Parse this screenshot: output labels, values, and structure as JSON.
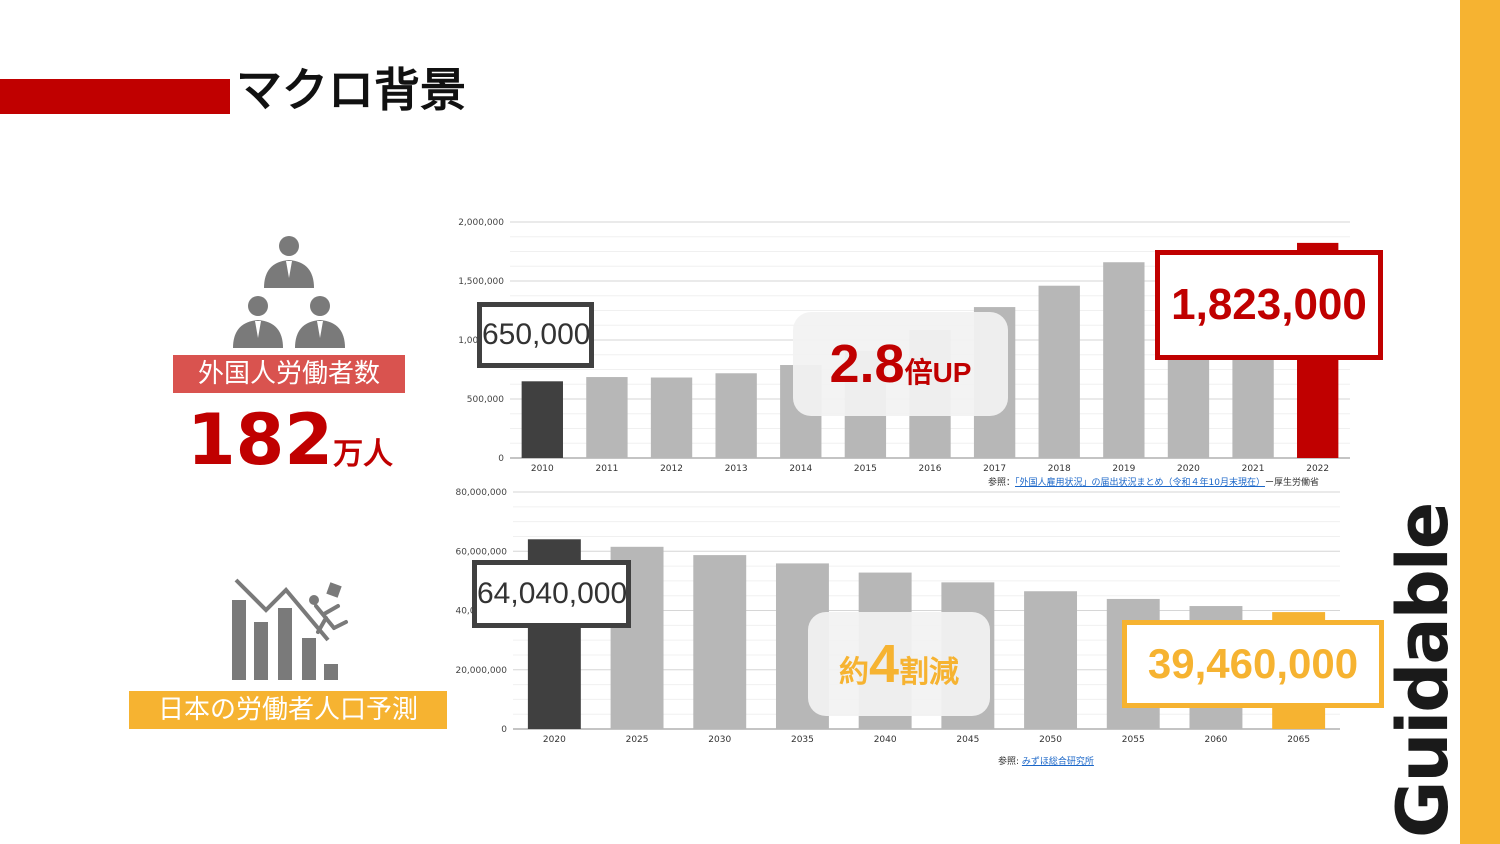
{
  "header": {
    "title": "マクロ背景"
  },
  "brand": {
    "logo_text": "Guidable",
    "accent_red": "#c00000",
    "accent_yellow": "#f6b331"
  },
  "left_panel": {
    "workers_icon": "business-people-icon",
    "workers_label": "外国人労働者数",
    "workers_value": "182",
    "workers_unit": "万人",
    "decline_icon": "declining-chart-falling-person-icon",
    "forecast_label": "日本の労働者人口予測"
  },
  "chart_data": [
    {
      "type": "bar",
      "categories": [
        "2010",
        "2011",
        "2012",
        "2013",
        "2014",
        "2015",
        "2016",
        "2017",
        "2018",
        "2019",
        "2020",
        "2021",
        "2022"
      ],
      "values": [
        650000,
        686000,
        682000,
        718000,
        788000,
        908000,
        1084000,
        1279000,
        1460000,
        1659000,
        1724000,
        1727000,
        1823000
      ],
      "ylim": [
        0,
        2000000
      ],
      "yticks": [
        "0",
        "500,000",
        "1,000,000",
        "1,500,000",
        "2,000,000"
      ],
      "grid": true,
      "highlight_colors": {
        "first": "#404040",
        "last": "#c00000",
        "default": "#b7b7b7"
      },
      "callouts": {
        "first_value": "650,000",
        "last_value": "1,823,000",
        "growth_number": "2.8",
        "growth_suffix": "倍UP"
      },
      "source": {
        "prefix": "参照：",
        "link": "「外国人雇用状況」の届出状況まとめ（令和４年10月末現在）",
        "suffix": "ー厚生労働省"
      }
    },
    {
      "type": "bar",
      "categories": [
        "2020",
        "2025",
        "2030",
        "2035",
        "2040",
        "2045",
        "2050",
        "2055",
        "2060",
        "2065"
      ],
      "values": [
        64040000,
        61500000,
        58700000,
        55900000,
        52800000,
        49500000,
        46500000,
        43900000,
        41500000,
        39460000
      ],
      "ylim": [
        0,
        80000000
      ],
      "yticks": [
        "0",
        "20,000,000",
        "40,000,000",
        "60,000,000",
        "80,000,000"
      ],
      "grid": true,
      "highlight_colors": {
        "first": "#404040",
        "last": "#f6b331",
        "default": "#b7b7b7"
      },
      "callouts": {
        "first_value": "64,040,000",
        "last_value": "39,460,000",
        "change_prefix": "約",
        "change_number": "4",
        "change_suffix": "割減"
      },
      "source": {
        "prefix": "参照: ",
        "link": "みずほ総合研究所",
        "suffix": ""
      }
    }
  ]
}
